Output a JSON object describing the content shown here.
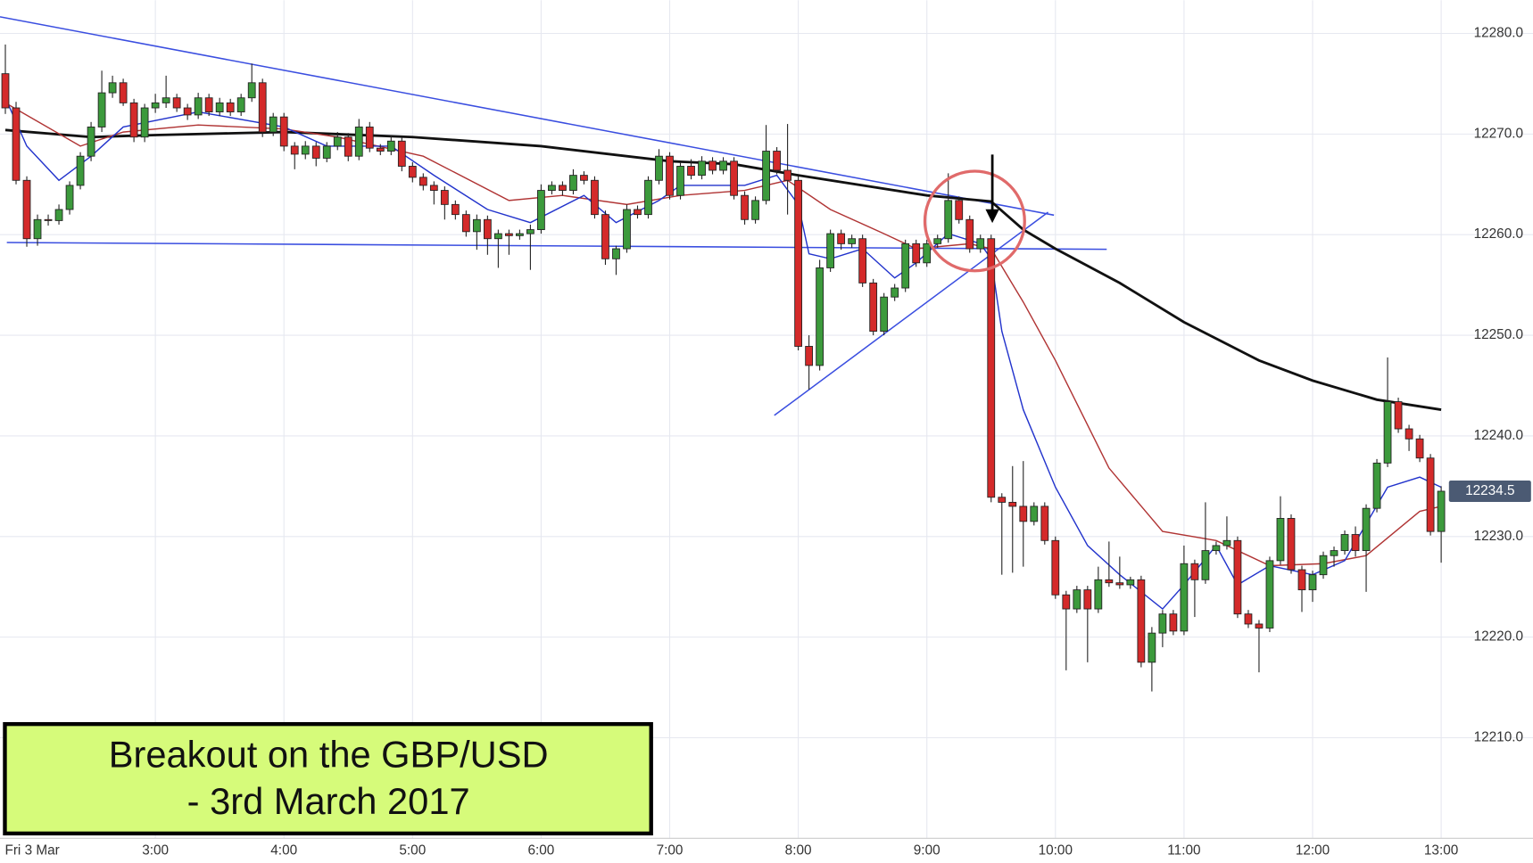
{
  "chart_data": {
    "type": "candlestick",
    "date_label": "Fri 3 Mar",
    "annotation": [
      "Breakout on the GBP/USD",
      "- 3rd March 2017"
    ],
    "x": [
      110,
      115,
      120,
      125,
      130,
      135,
      140,
      145,
      150,
      155,
      160,
      165,
      170,
      175,
      180,
      185,
      190,
      195,
      200,
      205,
      210,
      215,
      220,
      225,
      230,
      235,
      240,
      245,
      250,
      255,
      260,
      265,
      270,
      275,
      280,
      285,
      290,
      295,
      300,
      305,
      310,
      315,
      320,
      325,
      330,
      335,
      340,
      345,
      350,
      355,
      360,
      365,
      370,
      375,
      380,
      385,
      390,
      395,
      400,
      405,
      410,
      415,
      420,
      425,
      430,
      435,
      440,
      445,
      450,
      455,
      460,
      465,
      470,
      475,
      480,
      485,
      490,
      495,
      500,
      505,
      510,
      515,
      520,
      525,
      530,
      535,
      540,
      545,
      550,
      555,
      560,
      565,
      570,
      575,
      580,
      585,
      590,
      595,
      600,
      605,
      610,
      615,
      620,
      625,
      630,
      635,
      640,
      645,
      650,
      655,
      660,
      665,
      670,
      675,
      680,
      685,
      690,
      695,
      700,
      705,
      710,
      715,
      720,
      725,
      730,
      735,
      740,
      745,
      750,
      755,
      760,
      765,
      770,
      775,
      780
    ],
    "open": [
      12276.0,
      12272.6,
      12265.4,
      12259.6,
      12261.5,
      12261.4,
      12262.5,
      12264.9,
      12267.8,
      12270.7,
      12274.1,
      12275.1,
      12273.1,
      12269.7,
      12272.6,
      12273.1,
      12273.6,
      12272.6,
      12271.9,
      12273.6,
      12272.2,
      12273.1,
      12272.2,
      12273.6,
      12275.1,
      12270.2,
      12271.7,
      12268.8,
      12268.0,
      12268.8,
      12267.6,
      12268.8,
      12269.7,
      12267.8,
      12270.7,
      12268.6,
      12268.3,
      12269.3,
      12266.8,
      12265.7,
      12264.9,
      12264.4,
      12263.0,
      12262.0,
      12260.3,
      12261.5,
      12259.6,
      12260.1,
      12259.9,
      12260.1,
      12260.5,
      12264.4,
      12264.9,
      12264.4,
      12265.9,
      12265.4,
      12262.0,
      12257.6,
      12258.6,
      12262.5,
      12262.0,
      12265.4,
      12267.8,
      12263.9,
      12266.8,
      12265.9,
      12267.3,
      12266.4,
      12267.3,
      12263.9,
      12261.5,
      12263.4,
      12268.3,
      12266.4,
      12265.4,
      12248.9,
      12247.0,
      12256.7,
      12260.1,
      12259.1,
      12259.6,
      12255.2,
      12250.4,
      12253.8,
      12254.7,
      12259.1,
      12257.2,
      12259.1,
      12259.6,
      12263.4,
      12261.5,
      12258.6,
      12259.6,
      12233.9,
      12233.4,
      12233.0,
      12231.5,
      12233.0,
      12229.6,
      12224.2,
      12222.8,
      12224.7,
      12222.8,
      12225.7,
      12225.4,
      12225.2,
      12225.7,
      12217.5,
      12220.4,
      12222.3,
      12220.6,
      12227.3,
      12225.7,
      12228.6,
      12229.1,
      12229.6,
      12222.3,
      12221.3,
      12220.9,
      12227.6,
      12231.8,
      12226.7,
      12224.7,
      12226.2,
      12228.1,
      12228.6,
      12230.2,
      12228.6,
      12232.8,
      12237.3,
      12243.4,
      12240.7,
      12239.7,
      12237.8,
      12230.5
    ],
    "high": [
      12278.9,
      12273.2,
      12265.8,
      12262.0,
      12262.0,
      12263.0,
      12265.3,
      12268.2,
      12271.2,
      12276.3,
      12275.8,
      12275.5,
      12273.5,
      12273.0,
      12274.0,
      12275.8,
      12274.0,
      12273.0,
      12274.1,
      12274.0,
      12273.6,
      12273.5,
      12274.0,
      12277.0,
      12275.5,
      12272.1,
      12272.1,
      12269.2,
      12269.3,
      12269.2,
      12269.2,
      12270.2,
      12270.1,
      12271.5,
      12271.2,
      12269.0,
      12269.8,
      12269.7,
      12267.2,
      12266.1,
      12265.3,
      12264.8,
      12263.4,
      12262.4,
      12262.0,
      12261.9,
      12260.5,
      12260.5,
      12260.5,
      12261.0,
      12265.0,
      12265.3,
      12265.3,
      12266.5,
      12266.3,
      12265.8,
      12262.4,
      12258.9,
      12263.0,
      12262.9,
      12265.8,
      12268.5,
      12268.2,
      12267.2,
      12267.5,
      12267.8,
      12267.7,
      12267.7,
      12267.7,
      12264.3,
      12263.8,
      12270.9,
      12268.7,
      12271.0,
      12265.8,
      12250.0,
      12257.5,
      12260.5,
      12260.5,
      12260.0,
      12260.0,
      12255.6,
      12254.2,
      12255.1,
      12259.5,
      12259.5,
      12259.5,
      12260.0,
      12266.1,
      12263.8,
      12261.9,
      12260.0,
      12260.0,
      12234.3,
      12237.0,
      12237.5,
      12233.4,
      12233.4,
      12230.0,
      12224.6,
      12225.1,
      12225.1,
      12227.0,
      12229.5,
      12228.0,
      12226.0,
      12226.1,
      12221.0,
      12222.7,
      12222.7,
      12229.1,
      12227.7,
      12233.4,
      12229.5,
      12232.0,
      12230.0,
      12222.7,
      12221.7,
      12228.0,
      12234.0,
      12232.2,
      12227.1,
      12226.6,
      12228.5,
      12229.0,
      12230.6,
      12231.0,
      12233.2,
      12237.7,
      12247.8,
      12243.8,
      12241.1,
      12240.1,
      12238.2,
      12235.0
    ],
    "low": [
      12272.0,
      12265.0,
      12258.8,
      12258.9,
      12260.9,
      12261.0,
      12262.0,
      12264.5,
      12267.3,
      12270.2,
      12273.6,
      12272.8,
      12269.2,
      12269.2,
      12272.1,
      12272.6,
      12272.2,
      12271.4,
      12271.5,
      12271.8,
      12271.8,
      12271.8,
      12271.8,
      12273.2,
      12269.7,
      12269.8,
      12268.3,
      12266.5,
      12267.5,
      12266.8,
      12267.2,
      12268.4,
      12267.3,
      12267.4,
      12268.2,
      12267.9,
      12267.9,
      12266.3,
      12265.2,
      12264.4,
      12263.0,
      12261.5,
      12261.5,
      12259.8,
      12258.5,
      12258.0,
      12256.7,
      12258.0,
      12259.5,
      12256.5,
      12260.1,
      12264.0,
      12263.9,
      12264.0,
      12265.0,
      12261.6,
      12257.0,
      12256.0,
      12258.2,
      12261.6,
      12261.6,
      12265.0,
      12263.5,
      12263.5,
      12265.5,
      12265.5,
      12266.0,
      12266.0,
      12263.5,
      12261.0,
      12261.1,
      12263.0,
      12266.0,
      12262.0,
      12248.5,
      12244.6,
      12246.5,
      12256.3,
      12258.5,
      12258.7,
      12254.8,
      12250.0,
      12250.0,
      12253.4,
      12254.3,
      12256.8,
      12256.8,
      12258.7,
      12259.2,
      12261.1,
      12258.2,
      12258.2,
      12233.4,
      12226.2,
      12226.4,
      12227.0,
      12231.1,
      12229.2,
      12223.8,
      12216.7,
      12222.4,
      12217.5,
      12222.4,
      12225.0,
      12224.8,
      12224.8,
      12217.0,
      12214.6,
      12219.0,
      12220.2,
      12220.2,
      12222.0,
      12225.3,
      12228.2,
      12228.7,
      12221.9,
      12220.9,
      12216.5,
      12220.5,
      12227.2,
      12226.3,
      12222.5,
      12223.5,
      12225.8,
      12227.0,
      12228.2,
      12228.0,
      12224.5,
      12232.4,
      12236.9,
      12240.3,
      12238.5,
      12237.4,
      12230.1,
      12227.4
    ],
    "close": [
      12272.6,
      12265.4,
      12259.6,
      12261.5,
      12261.4,
      12262.5,
      12264.9,
      12267.8,
      12270.7,
      12274.1,
      12275.1,
      12273.1,
      12269.7,
      12272.6,
      12273.1,
      12273.6,
      12272.6,
      12271.9,
      12273.6,
      12272.2,
      12273.1,
      12272.2,
      12273.6,
      12275.1,
      12270.2,
      12271.7,
      12268.8,
      12268.0,
      12268.8,
      12267.6,
      12268.8,
      12269.7,
      12267.8,
      12270.7,
      12268.6,
      12268.3,
      12269.3,
      12266.8,
      12265.7,
      12264.9,
      12264.4,
      12263.0,
      12262.0,
      12260.3,
      12261.5,
      12259.6,
      12260.1,
      12259.9,
      12260.1,
      12260.5,
      12264.4,
      12264.9,
      12264.4,
      12265.9,
      12265.4,
      12262.0,
      12257.6,
      12258.6,
      12262.5,
      12262.0,
      12265.4,
      12267.8,
      12263.9,
      12266.8,
      12265.9,
      12267.3,
      12266.4,
      12267.3,
      12263.9,
      12261.5,
      12263.4,
      12268.3,
      12266.4,
      12265.4,
      12248.9,
      12247.0,
      12256.7,
      12260.1,
      12259.1,
      12259.6,
      12255.2,
      12250.4,
      12253.8,
      12254.7,
      12259.1,
      12257.2,
      12259.1,
      12259.6,
      12263.4,
      12261.5,
      12258.6,
      12259.6,
      12233.9,
      12233.4,
      12233.0,
      12231.5,
      12233.0,
      12229.6,
      12224.2,
      12222.8,
      12224.7,
      12222.8,
      12225.7,
      12225.4,
      12225.2,
      12225.7,
      12217.5,
      12220.4,
      12222.3,
      12220.6,
      12227.3,
      12225.7,
      12228.6,
      12229.1,
      12229.6,
      12222.3,
      12221.3,
      12220.9,
      12227.6,
      12231.8,
      12226.7,
      12224.7,
      12226.2,
      12228.1,
      12228.6,
      12230.2,
      12228.6,
      12232.8,
      12237.3,
      12243.4,
      12240.7,
      12239.7,
      12237.8,
      12230.5,
      12234.5
    ],
    "up_color": "#3c9a3c",
    "down_color": "#d42a2a",
    "moving_averages": [
      {
        "color": "#111111",
        "x": [
          110,
          150,
          180,
          240,
          300,
          360,
          420,
          450,
          480,
          540,
          570,
          585,
          600,
          630,
          660,
          695,
          720,
          750,
          780
        ],
        "values": [
          12270.4,
          12269.7,
          12269.9,
          12270.2,
          12269.7,
          12268.8,
          12267.3,
          12267.0,
          12265.9,
          12263.9,
          12263.3,
          12260.5,
          12258.6,
          12255.2,
          12251.3,
          12247.5,
          12245.5,
          12243.6,
          12242.6
        ]
      },
      {
        "color": "#b03434",
        "x": [
          110,
          145,
          165,
          200,
          240,
          265,
          305,
          345,
          370,
          400,
          425,
          455,
          475,
          495,
          520,
          535,
          560,
          570,
          585,
          600,
          625,
          650,
          675,
          700,
          725,
          745,
          770,
          780
        ],
        "values": [
          12273.1,
          12268.8,
          12270.2,
          12270.9,
          12270.5,
          12269.7,
          12267.8,
          12263.4,
          12263.9,
          12263.0,
          12263.9,
          12264.4,
          12265.4,
          12262.5,
          12260.1,
          12258.6,
          12259.1,
          12258.6,
          12253.3,
          12247.5,
          12236.8,
          12230.5,
          12229.6,
          12227.1,
          12227.3,
          12228.1,
          12232.5,
          12233.0
        ]
      },
      {
        "color": "#2233cc",
        "x": [
          110,
          120,
          135,
          150,
          165,
          200,
          240,
          260,
          290,
          310,
          335,
          355,
          380,
          395,
          415,
          425,
          455,
          470,
          480,
          485,
          495,
          510,
          525,
          535,
          550,
          565,
          570,
          575,
          585,
          600,
          615,
          630,
          650,
          660,
          675,
          685,
          700,
          720,
          735,
          755,
          770,
          780
        ],
        "values": [
          12273.6,
          12268.8,
          12265.4,
          12267.8,
          12270.7,
          12272.2,
          12270.7,
          12268.8,
          12268.8,
          12265.9,
          12262.5,
          12261.2,
          12263.9,
          12261.2,
          12263.4,
          12264.9,
          12264.9,
          12265.9,
          12263.0,
          12258.1,
          12257.6,
          12258.6,
          12255.7,
          12257.2,
          12260.1,
          12259.1,
          12257.6,
          12250.4,
          12242.6,
          12234.9,
          12229.1,
          12226.2,
          12222.8,
          12225.2,
          12229.1,
          12225.2,
          12227.1,
          12226.2,
          12227.6,
          12234.9,
          12235.9,
          12234.9
        ]
      }
    ],
    "last_price": 12234.5,
    "xlim": [
      107.5,
      782.7
    ],
    "ylim": [
      12200,
      12283.3
    ],
    "xticks": [
      {
        "value": 180,
        "label": "3:00"
      },
      {
        "value": 240,
        "label": "4:00"
      },
      {
        "value": 300,
        "label": "5:00"
      },
      {
        "value": 360,
        "label": "6:00"
      },
      {
        "value": 420,
        "label": "7:00"
      },
      {
        "value": 480,
        "label": "8:00"
      },
      {
        "value": 540,
        "label": "9:00"
      },
      {
        "value": 600,
        "label": "10:00"
      },
      {
        "value": 660,
        "label": "11:00"
      },
      {
        "value": 720,
        "label": "12:00"
      },
      {
        "value": 780,
        "label": "13:00"
      }
    ],
    "yticks": [
      {
        "value": 12210,
        "label": "12210.0"
      },
      {
        "value": 12220,
        "label": "12220.0"
      },
      {
        "value": 12230,
        "label": "12230.0"
      },
      {
        "value": 12240,
        "label": "12240.0"
      },
      {
        "value": 12250,
        "label": "12250.0"
      },
      {
        "value": 12260,
        "label": "12260.0"
      },
      {
        "value": 12270,
        "label": "12270.0"
      },
      {
        "value": 12280,
        "label": "12280.0"
      }
    ],
    "grid": true
  }
}
